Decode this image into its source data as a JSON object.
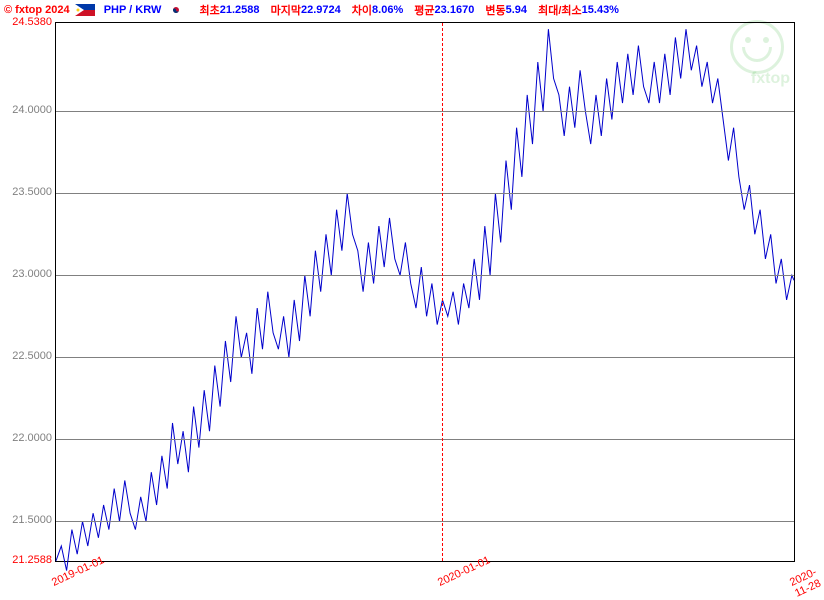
{
  "header": {
    "copyright": "© fxtop 2024",
    "pair": "PHP / KRW",
    "stats": [
      {
        "label": "최초",
        "value": "21.2588"
      },
      {
        "label": "마지막",
        "value": "22.9724"
      },
      {
        "label": "차이",
        "value": "8.06%"
      },
      {
        "label": "평균",
        "value": "23.1670"
      },
      {
        "label": "변동",
        "value": "5.94"
      },
      {
        "label": "최대/최소",
        "value": "15.43%"
      }
    ]
  },
  "watermark": "fxtop",
  "chart": {
    "type": "line",
    "ylim": [
      21.2588,
      24.538
    ],
    "ymax_label": "24.5380",
    "ymin_label": "21.2588",
    "yticks": [
      {
        "v": 21.5,
        "label": "21.5000"
      },
      {
        "v": 22.0,
        "label": "22.0000"
      },
      {
        "v": 22.5,
        "label": "22.5000"
      },
      {
        "v": 23.0,
        "label": "23.0000"
      },
      {
        "v": 23.5,
        "label": "23.5000"
      },
      {
        "v": 24.0,
        "label": "24.0000"
      }
    ],
    "xlim": [
      0,
      697
    ],
    "xticks": [
      {
        "x": 0,
        "label": "2019-01-01"
      },
      {
        "x": 365,
        "label": "2020-01-01"
      },
      {
        "x": 697,
        "label": "2020-11-28"
      }
    ],
    "vlines": [
      365
    ],
    "line_color": "#0000cc",
    "line_width": 1,
    "grid_color": "#808080",
    "background_color": "#ffffff",
    "vline_color": "#ff0000",
    "data": [
      [
        0,
        21.26
      ],
      [
        5,
        21.35
      ],
      [
        10,
        21.2
      ],
      [
        15,
        21.45
      ],
      [
        20,
        21.3
      ],
      [
        25,
        21.5
      ],
      [
        30,
        21.35
      ],
      [
        35,
        21.55
      ],
      [
        40,
        21.4
      ],
      [
        45,
        21.6
      ],
      [
        50,
        21.45
      ],
      [
        55,
        21.7
      ],
      [
        60,
        21.5
      ],
      [
        65,
        21.75
      ],
      [
        70,
        21.55
      ],
      [
        75,
        21.45
      ],
      [
        80,
        21.65
      ],
      [
        85,
        21.5
      ],
      [
        90,
        21.8
      ],
      [
        95,
        21.6
      ],
      [
        100,
        21.9
      ],
      [
        105,
        21.7
      ],
      [
        110,
        22.1
      ],
      [
        115,
        21.85
      ],
      [
        120,
        22.05
      ],
      [
        125,
        21.8
      ],
      [
        130,
        22.2
      ],
      [
        135,
        21.95
      ],
      [
        140,
        22.3
      ],
      [
        145,
        22.05
      ],
      [
        150,
        22.45
      ],
      [
        155,
        22.2
      ],
      [
        160,
        22.6
      ],
      [
        165,
        22.35
      ],
      [
        170,
        22.75
      ],
      [
        175,
        22.5
      ],
      [
        180,
        22.65
      ],
      [
        185,
        22.4
      ],
      [
        190,
        22.8
      ],
      [
        195,
        22.55
      ],
      [
        200,
        22.9
      ],
      [
        205,
        22.65
      ],
      [
        210,
        22.55
      ],
      [
        215,
        22.75
      ],
      [
        220,
        22.5
      ],
      [
        225,
        22.85
      ],
      [
        230,
        22.6
      ],
      [
        235,
        23.0
      ],
      [
        240,
        22.75
      ],
      [
        245,
        23.15
      ],
      [
        250,
        22.9
      ],
      [
        255,
        23.25
      ],
      [
        260,
        23.0
      ],
      [
        265,
        23.4
      ],
      [
        270,
        23.15
      ],
      [
        275,
        23.5
      ],
      [
        280,
        23.25
      ],
      [
        285,
        23.15
      ],
      [
        290,
        22.9
      ],
      [
        295,
        23.2
      ],
      [
        300,
        22.95
      ],
      [
        305,
        23.3
      ],
      [
        310,
        23.05
      ],
      [
        315,
        23.35
      ],
      [
        320,
        23.1
      ],
      [
        325,
        23.0
      ],
      [
        330,
        23.2
      ],
      [
        335,
        22.95
      ],
      [
        340,
        22.8
      ],
      [
        345,
        23.05
      ],
      [
        350,
        22.75
      ],
      [
        355,
        22.95
      ],
      [
        360,
        22.7
      ],
      [
        365,
        22.85
      ],
      [
        370,
        22.75
      ],
      [
        375,
        22.9
      ],
      [
        380,
        22.7
      ],
      [
        385,
        22.95
      ],
      [
        390,
        22.8
      ],
      [
        395,
        23.1
      ],
      [
        400,
        22.85
      ],
      [
        405,
        23.3
      ],
      [
        410,
        23.0
      ],
      [
        415,
        23.5
      ],
      [
        420,
        23.2
      ],
      [
        425,
        23.7
      ],
      [
        430,
        23.4
      ],
      [
        435,
        23.9
      ],
      [
        440,
        23.6
      ],
      [
        445,
        24.1
      ],
      [
        450,
        23.8
      ],
      [
        455,
        24.3
      ],
      [
        460,
        24.0
      ],
      [
        465,
        24.5
      ],
      [
        470,
        24.2
      ],
      [
        475,
        24.1
      ],
      [
        480,
        23.85
      ],
      [
        485,
        24.15
      ],
      [
        490,
        23.9
      ],
      [
        495,
        24.25
      ],
      [
        500,
        24.0
      ],
      [
        505,
        23.8
      ],
      [
        510,
        24.1
      ],
      [
        515,
        23.85
      ],
      [
        520,
        24.2
      ],
      [
        525,
        23.95
      ],
      [
        530,
        24.3
      ],
      [
        535,
        24.05
      ],
      [
        540,
        24.35
      ],
      [
        545,
        24.1
      ],
      [
        550,
        24.4
      ],
      [
        555,
        24.15
      ],
      [
        560,
        24.05
      ],
      [
        565,
        24.3
      ],
      [
        570,
        24.05
      ],
      [
        575,
        24.35
      ],
      [
        580,
        24.1
      ],
      [
        585,
        24.45
      ],
      [
        590,
        24.2
      ],
      [
        595,
        24.5
      ],
      [
        600,
        24.25
      ],
      [
        605,
        24.4
      ],
      [
        610,
        24.15
      ],
      [
        615,
        24.3
      ],
      [
        620,
        24.05
      ],
      [
        625,
        24.2
      ],
      [
        630,
        23.95
      ],
      [
        635,
        23.7
      ],
      [
        640,
        23.9
      ],
      [
        645,
        23.6
      ],
      [
        650,
        23.4
      ],
      [
        655,
        23.55
      ],
      [
        660,
        23.25
      ],
      [
        665,
        23.4
      ],
      [
        670,
        23.1
      ],
      [
        675,
        23.25
      ],
      [
        680,
        22.95
      ],
      [
        685,
        23.1
      ],
      [
        690,
        22.85
      ],
      [
        695,
        23.0
      ],
      [
        697,
        22.97
      ]
    ]
  }
}
